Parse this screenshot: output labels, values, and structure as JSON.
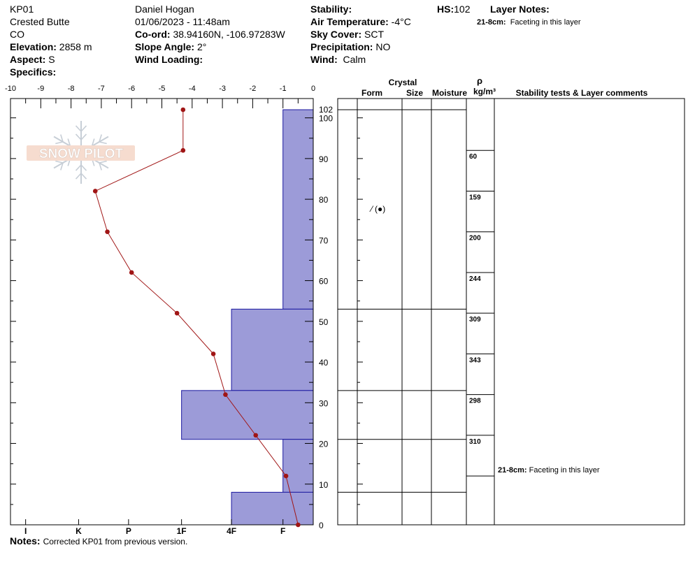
{
  "header": {
    "station": "KP01",
    "location": "Crested Butte",
    "state": "CO",
    "elevation_label": "Elevation:",
    "elevation": "2858 m",
    "aspect_label": "Aspect:",
    "aspect": "S",
    "specifics_label": "Specifics:",
    "observer": "Daniel Hogan",
    "datetime": "01/06/2023 - 11:48am",
    "coord_label": "Co-ord:",
    "coord": "38.94160N, -106.97283W",
    "slope_label": "Slope Angle:",
    "slope": "2°",
    "wind_loading_label": "Wind Loading:",
    "stability_label": "Stability:",
    "air_temp_label": "Air Temperature:",
    "air_temp": "-4°C",
    "sky_label": "Sky Cover:",
    "sky": "SCT",
    "precip_label": "Precipitation:",
    "precip": "NO",
    "wind_label": "Wind:",
    "wind": "Calm",
    "hs_label": "HS:",
    "hs": "102",
    "layer_notes_label": "Layer Notes:",
    "layer_note_range": "21-8cm:",
    "layer_note_text": "Faceting in this layer"
  },
  "notes": {
    "label": "Notes:",
    "text": "Corrected KP01 from previous version."
  },
  "logo": {
    "text": "SNOW PILOT"
  },
  "chart_data": {
    "type": "snow-profile",
    "temp_axis": {
      "ticks": [
        -10,
        -9,
        -8,
        -7,
        -6,
        -5,
        -4,
        -3,
        -2,
        -1,
        0
      ],
      "range": [
        -10,
        0
      ]
    },
    "height_axis": {
      "ticks": [
        0,
        10,
        20,
        30,
        40,
        50,
        60,
        70,
        80,
        90,
        100
      ],
      "range": [
        0,
        102
      ],
      "top_label": "102"
    },
    "hardness_labels": [
      "I",
      "K",
      "P",
      "1F",
      "4F",
      "F"
    ],
    "hardness_scale": {
      "I": -9.5,
      "K": -7.75,
      "P": -6.1,
      "1F": -4.35,
      "4F": -2.7,
      "F": -1.0
    },
    "layers": [
      {
        "top": 102,
        "bottom": 53,
        "hardness": "F"
      },
      {
        "top": 53,
        "bottom": 33,
        "hardness": "4F"
      },
      {
        "top": 33,
        "bottom": 21,
        "hardness": "1F"
      },
      {
        "top": 21,
        "bottom": 8,
        "hardness": "F"
      },
      {
        "top": 8,
        "bottom": 0,
        "hardness": "4F"
      }
    ],
    "temperature_profile": [
      {
        "depth": 102,
        "temp": -4.3
      },
      {
        "depth": 92,
        "temp": -4.3
      },
      {
        "depth": 82,
        "temp": -7.2
      },
      {
        "depth": 72,
        "temp": -6.8
      },
      {
        "depth": 62,
        "temp": -6.0
      },
      {
        "depth": 52,
        "temp": -4.5
      },
      {
        "depth": 42,
        "temp": -3.3
      },
      {
        "depth": 32,
        "temp": -2.9
      },
      {
        "depth": 22,
        "temp": -1.9
      },
      {
        "depth": 12,
        "temp": -0.9
      },
      {
        "depth": 0,
        "temp": -0.5
      }
    ],
    "table_headers": {
      "crystal": "Crystal",
      "form": "Form",
      "size": "Size",
      "moisture": "Moisture",
      "rho": "ρ",
      "rho_unit": "kg/m³",
      "comments": "Stability tests & Layer comments"
    },
    "densities": [
      {
        "top": 92,
        "bottom": 82,
        "value": "60"
      },
      {
        "top": 82,
        "bottom": 72,
        "value": "159"
      },
      {
        "top": 72,
        "bottom": 62,
        "value": "200"
      },
      {
        "top": 62,
        "bottom": 52,
        "value": "244"
      },
      {
        "top": 52,
        "bottom": 42,
        "value": "309"
      },
      {
        "top": 42,
        "bottom": 32,
        "value": "343"
      },
      {
        "top": 32,
        "bottom": 22,
        "value": "298"
      },
      {
        "top": 22,
        "bottom": 12,
        "value": "310"
      }
    ],
    "crystal_form": {
      "layer_top": 102,
      "symbol": "⁄ (●)"
    },
    "layer_comment": {
      "range": "21-8cm:",
      "text": "Faceting in this layer"
    },
    "colors": {
      "hardness_fill": "#9c9bd8",
      "hardness_stroke": "#1c1aa0",
      "temp_line": "#a01515"
    }
  }
}
